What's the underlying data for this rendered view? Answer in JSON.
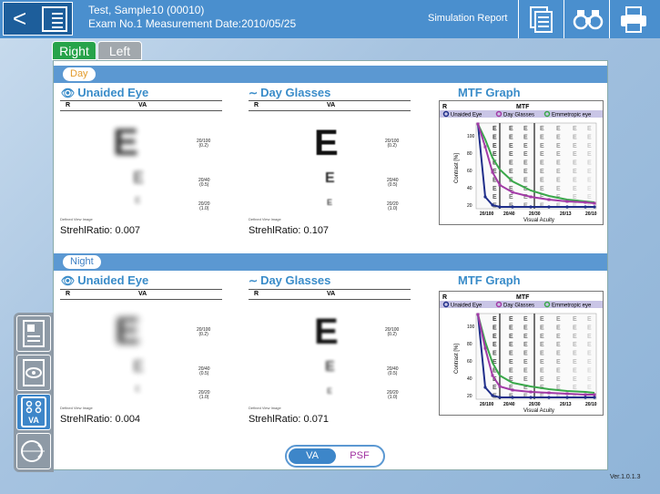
{
  "header": {
    "patient_line": "Test, Sample10 (00010)",
    "exam_line": "Exam No.1 Measurement Date:2010/05/25",
    "report_title": "Simulation Report"
  },
  "toolbar": {
    "back_icon": "chevron-left-icon",
    "print_icon": "printer-icon",
    "report_icon": "document-stack-icon",
    "glasses_icon": "binoculars-icon"
  },
  "eye_tabs": {
    "right": "Right",
    "left": "Left",
    "selected": "Right"
  },
  "sections": [
    {
      "label": "Day",
      "unaided": {
        "title": "Unaided Eye",
        "strehl": "StrehlRatio: 0.007"
      },
      "glasses": {
        "title": "Day Glasses",
        "strehl": "StrehlRatio: 0.107"
      },
      "mtf": {
        "title": "MTF Graph"
      }
    },
    {
      "label": "Night",
      "unaided": {
        "title": "Unaided Eye",
        "strehl": "StrehlRatio: 0.004"
      },
      "glasses": {
        "title": "Day Glasses",
        "strehl": "StrehlRatio: 0.071"
      },
      "mtf": {
        "title": "MTF Graph"
      }
    }
  ],
  "va_table": {
    "col_r": "R",
    "col_va": "VA",
    "rows": [
      {
        "line1": "20/100",
        "line2": "(0.2)"
      },
      {
        "line1": "20/40",
        "line2": "(0.5)"
      },
      {
        "line1": "20/20",
        "line2": "(1.0)"
      }
    ],
    "footnote": "Defined View Image"
  },
  "mtf_chart": {
    "r_label": "R",
    "header": "MTF",
    "legend": [
      "Unaided Eye",
      "Day Glasses",
      "Emmetropic eye"
    ],
    "ylabel": "Contrast [%]",
    "xlabel": "Visual Acuity",
    "y_ticks": [
      "20",
      "40",
      "60",
      "80",
      "100"
    ],
    "x_ticks": [
      "20/100",
      "20/40",
      "20/30",
      "20/13",
      "20/10"
    ],
    "colors": {
      "unaided": "#1f2e8a",
      "glasses": "#a23aa6",
      "emmetropic": "#3aa84a"
    }
  },
  "mode_toggle": {
    "va": "VA",
    "psf": "PSF",
    "selected": "VA"
  },
  "sidebar": {
    "items": [
      {
        "icon": "patient-card-icon"
      },
      {
        "icon": "eye-map-icon"
      },
      {
        "icon": "va-chart-icon",
        "label": "VA"
      },
      {
        "icon": "eye-profile-icon"
      }
    ]
  },
  "version": "Ver.1.0.1.3"
}
